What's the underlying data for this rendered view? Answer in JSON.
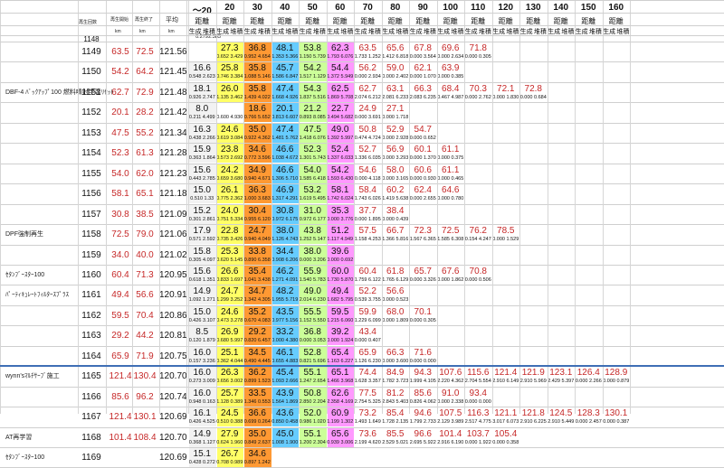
{
  "header": {
    "col_id": "再生回数",
    "col_start": "再生開始",
    "col_end": "再生終了",
    "col_avg": "平均",
    "unit_km": "km",
    "ranges": [
      "～20",
      "20",
      "30",
      "40",
      "50",
      "60",
      "70",
      "80",
      "90",
      "100",
      "110",
      "120",
      "130",
      "140",
      "150",
      "160"
    ],
    "sub_label": "距離",
    "sub2_a": "生成",
    "sub2_b": "堆積"
  },
  "top_partial": {
    "id": "1148",
    "big": "",
    "sm": [
      "0.279",
      "2.383"
    ]
  },
  "colors": {
    "c20": "#f2f2f2",
    "c30": "#ffff66",
    "c40": "#ff9933",
    "c50": "#66ccff",
    "c60": "#ccff99",
    "c70": "#ff99ff",
    "c80": "#ffffff"
  },
  "rows": [
    {
      "id": "1149",
      "start": "63.5",
      "end": "72.5",
      "avg": "121.56",
      "note": "",
      "bigs": [
        "",
        "27.3",
        "36.8",
        "48.1",
        "53.8",
        "62.3",
        "63.5",
        "65.6",
        "67.8",
        "69.6",
        "71.8"
      ],
      "sms": [
        "",
        "0.652 3.429",
        "0.952 4.654",
        "1.353 5.366",
        "1.150 5.739",
        "1.793 6.076",
        "1.733 1.252",
        "1.412 6.818",
        "0.000 3.564",
        "0.000 2.634",
        "0.000 0.305"
      ]
    },
    {
      "id": "1150",
      "start": "54.2",
      "end": "64.2",
      "avg": "121.45",
      "note": "",
      "bigs": [
        "16.6",
        "25.8",
        "35.8",
        "45.7",
        "54.2",
        "54.4",
        "56.2",
        "59.0",
        "62.1",
        "63.9"
      ],
      "sms": [
        "0.548 2.623",
        "0.746 3.384",
        "1.088 5.146",
        "1.586 6.847",
        "1.517 1.129",
        "1.372 5.949",
        "0.000 2.934",
        "0.000 2.402",
        "0.000 1.070",
        "0.000 0.385"
      ]
    },
    {
      "id": "1151",
      "start": "62.7",
      "end": "72.9",
      "avg": "121.48",
      "note": "DBF-4 ﾊﾞｯｸｱｯﾌﾟ100 燃料噴射学習ﾘｾｯﾄ",
      "bigs": [
        "18.1",
        "26.0",
        "35.8",
        "47.4",
        "54.3",
        "62.5",
        "62.7",
        "63.1",
        "66.3",
        "68.4",
        "70.3",
        "72.1",
        "72.8"
      ],
      "sms": [
        "0.926 2.747",
        "1.135 3.462",
        "1.439 4.022",
        "1.668 4.926",
        "1.837 5.516",
        "1.869 5.708",
        "2.074 6.212",
        "2.081 6.233",
        "2.083 6.235",
        "0.467 4.987",
        "0.000 2.762",
        "0.000 1.830",
        "0.000 0.684"
      ]
    },
    {
      "id": "1152",
      "start": "20.1",
      "end": "28.2",
      "avg": "121.42",
      "note": "",
      "bigs": [
        "8.0",
        "",
        "18.6",
        "20.1",
        "21.2",
        "22.7",
        "24.9",
        "27.1"
      ],
      "sms": [
        "0.211 4.499",
        "0.600 4.930",
        "0.766 5.652",
        "0.813 6.607",
        "0.893 8.085",
        "0.494 5.682",
        "0.000 3.691",
        "0.000 1.718"
      ]
    },
    {
      "id": "1153",
      "start": "47.5",
      "end": "55.2",
      "avg": "121.34",
      "note": "",
      "bigs": [
        "16.3",
        "24.6",
        "35.0",
        "47.4",
        "47.5",
        "49.0",
        "50.8",
        "52.9",
        "54.7"
      ],
      "sms": [
        "0.438 2.266",
        "0.619 3.084",
        "0.922 4.362",
        "1.481 5.762",
        "1.418 6.076",
        "1.392 5.997",
        "0.474 4.724",
        "0.000 2.928",
        "0.000 0.652"
      ]
    },
    {
      "id": "1154",
      "start": "52.3",
      "end": "61.3",
      "avg": "121.28",
      "note": "",
      "bigs": [
        "15.9",
        "23.8",
        "34.6",
        "46.6",
        "52.3",
        "52.4",
        "52.7",
        "56.9",
        "60.1",
        "61.1"
      ],
      "sms": [
        "0.363 1.864",
        "0.573 2.692",
        "0.772 3.596",
        "1.038 4.672",
        "1.301 5.743",
        "1.337 6.033",
        "1.336 6.035",
        "0.000 3.293",
        "0.000 1.370",
        "0.000 0.375"
      ]
    },
    {
      "id": "1155",
      "start": "54.0",
      "end": "62.0",
      "avg": "121.23",
      "note": "",
      "bigs": [
        "15.6",
        "24.2",
        "34.9",
        "46.6",
        "54.0",
        "54.2",
        "54.6",
        "58.0",
        "60.6",
        "61.1"
      ],
      "sms": [
        "0.443 2.785",
        "0.659 3.680",
        "0.940 4.671",
        "1.306 5.710",
        "1.585 6.418",
        "1.593 6.430",
        "0.000 4.118",
        "0.000 3.165",
        "0.000 0.930",
        "0.000 0.465"
      ]
    },
    {
      "id": "1156",
      "start": "58.1",
      "end": "65.1",
      "avg": "121.18",
      "note": "",
      "bigs": [
        "15.0",
        "26.1",
        "36.3",
        "46.9",
        "53.2",
        "58.1",
        "58.4",
        "60.2",
        "62.4",
        "64.6"
      ],
      "sms": [
        "0.510 1.33",
        "0.775 2.362",
        "1.000 3.683",
        "1.317 4.291",
        "1.619 5.495",
        "1.742 6.024",
        "1.743 6.026",
        "1.419 5.638",
        "0.000 2.655",
        "0.000 0.780"
      ]
    },
    {
      "id": "1157",
      "start": "30.8",
      "end": "38.5",
      "avg": "121.09",
      "note": "",
      "bigs": [
        "15.2",
        "24.0",
        "30.4",
        "30.8",
        "31.0",
        "35.3",
        "37.7",
        "38.4"
      ],
      "sms": [
        "0.301 2.861",
        "0.751 5.334",
        "0.955 6.120",
        "0.972 6.175",
        "0.972 6.177",
        "0.000 3.776",
        "0.000 1.895",
        "0.000 0.439"
      ]
    },
    {
      "id": "1158",
      "start": "72.5",
      "end": "79.0",
      "avg": "121.06",
      "note": "DPF強制再生",
      "bigs": [
        "17.9",
        "22.8",
        "24.7",
        "38.0",
        "43.8",
        "51.2",
        "57.5",
        "66.7",
        "72.3",
        "72.5",
        "76.2",
        "78.5"
      ],
      "sms": [
        "0.571 2.592",
        "0.735 3.426",
        "0.940 4.049",
        "1.126 4.743",
        "1.252 5.147",
        "1.117 4.949",
        "1.158 4.253",
        "1.366 5.816",
        "1.567 6.365",
        "1.585 6.308",
        "0.154 4.247",
        "0.000 1.529"
      ]
    },
    {
      "id": "1159",
      "start": "34.0",
      "end": "40.0",
      "avg": "121.02",
      "note": "",
      "bigs": [
        "15.8",
        "25.3",
        "33.8",
        "34.4",
        "38.0",
        "39.6"
      ],
      "sms": [
        "0.305 4.097",
        "0.620 5.145",
        "0.890 6.358",
        "0.908 6.206",
        "0.000 3.206",
        "0.000 0.692"
      ]
    },
    {
      "id": "1160",
      "start": "60.4",
      "end": "71.3",
      "avg": "120.95",
      "note": "ｾﾀﾝﾌﾞｰｽﾀｰ100",
      "bigs": [
        "15.6",
        "26.6",
        "35.4",
        "46.2",
        "55.9",
        "60.0",
        "60.4",
        "61.8",
        "65.7",
        "67.6",
        "70.8"
      ],
      "sms": [
        "0.618 1.351",
        "0.833 1.697",
        "1.041 3.438",
        "1.271 4.091",
        "1.540 5.783",
        "1.730 5.870",
        "1.759 6.122",
        "1.765 6.129",
        "0.000 3.326",
        "0.000 1.862",
        "0.000 0.506"
      ]
    },
    {
      "id": "1161",
      "start": "49.4",
      "end": "56.6",
      "avg": "120.91",
      "note": "ﾊﾟｰﾃｨｷｭﾚｰﾄﾌｨﾙﾀｰｽﾌﾟﾗｽ",
      "bigs": [
        "14.9",
        "24.7",
        "34.7",
        "48.2",
        "49.0",
        "49.4",
        "52.2",
        "56.6"
      ],
      "sms": [
        "1.092 1.271",
        "1.299 3.252",
        "1.342 4.305",
        "1.955 5.719",
        "2.014 6.230",
        "1.682 5.795",
        "0.539 3.755",
        "0.000 0.523"
      ]
    },
    {
      "id": "1162",
      "start": "59.5",
      "end": "70.4",
      "avg": "120.86",
      "note": "",
      "bigs": [
        "15.0",
        "24.6",
        "35.2",
        "43.5",
        "55.5",
        "59.5",
        "59.9",
        "68.0",
        "70.1"
      ],
      "sms": [
        "0.426 3.107",
        "0.473 3.278",
        "0.670 4.083",
        "0.977 5.156",
        "1.152 5.550",
        "1.215 6.060",
        "1.229 6.099",
        "0.000 1.809",
        "0.000 0.305"
      ]
    },
    {
      "id": "1163",
      "start": "29.2",
      "end": "44.2",
      "avg": "120.81",
      "note": "",
      "bigs": [
        "8.5",
        "26.9",
        "29.2",
        "33.2",
        "36.8",
        "39.2",
        "43.4"
      ],
      "sms": [
        "0.120 1.879",
        "0.680 5.997",
        "0.820 6.457",
        "0.000 4.380",
        "0.000 3.053",
        "0.000 1.924",
        "0.000 0.407"
      ]
    },
    {
      "id": "1164",
      "start": "65.9",
      "end": "71.9",
      "avg": "120.75",
      "note": "",
      "bigs": [
        "16.0",
        "25.1",
        "34.5",
        "46.1",
        "52.8",
        "65.4",
        "65.9",
        "66.3",
        "71.6"
      ],
      "sms": [
        "0.157 3.236",
        "0.362 4.044",
        "0.490 4.445",
        "0.655 4.883",
        "0.821 5.696",
        "1.163 6.227",
        "1.126 6.230",
        "0.000 3.600",
        "0.000 0.000"
      ]
    },
    {
      "id": "1165",
      "start": "121.4",
      "end": "130.4",
      "avg": "120.70",
      "note": "wynn'sﾏﾙﾁｻｰﾌﾞ施工",
      "bigs": [
        "16.0",
        "26.3",
        "36.2",
        "45.4",
        "55.1",
        "65.1",
        "74.4",
        "84.9",
        "94.3",
        "107.6",
        "115.6",
        "121.4",
        "121.9",
        "123.1",
        "126.4",
        "128.9"
      ],
      "sms": [
        "0.273 3.009",
        "0.656 3.002",
        "0.899 1.523",
        "1.093 2.666",
        "1.247 2.654",
        "1.466 3.968",
        "1.628 3.357",
        "1.782 3.723",
        "1.999 4.105",
        "2.220 4.362",
        "2.704 5.554",
        "2.910 6.149",
        "2.910 5.969",
        "2.429 5.397",
        "0.000 2.266",
        "0.000 0.879"
      ]
    },
    {
      "id": "1166",
      "start": "85.6",
      "end": "96.2",
      "avg": "120.74",
      "note": "",
      "bigs": [
        "16.0",
        "25.7",
        "33.5",
        "43.9",
        "50.8",
        "62.6",
        "77.5",
        "81.2",
        "85.6",
        "91.0",
        "93.4"
      ],
      "sms": [
        "0.948 0.163",
        "1.128 0.389",
        "1.346 0.553",
        "1.564 1.869",
        "2.850 2.204",
        "2.358 4.169",
        "2.754 5.325",
        "2.843 5.403",
        "0.826 4.062",
        "0.000 2.338",
        "0.000 0.000"
      ]
    },
    {
      "id": "1167",
      "start": "121.4",
      "end": "130.1",
      "avg": "120.69",
      "note": "",
      "bigs": [
        "16.1",
        "24.5",
        "36.6",
        "43.6",
        "52.0",
        "60.9",
        "73.2",
        "85.4",
        "94.6",
        "107.5",
        "116.3",
        "121.1",
        "121.8",
        "124.5",
        "128.3",
        "130.1"
      ],
      "sms": [
        "0.426 4.525",
        "0.510 0.388",
        "0.699 0.264",
        "0.850 0.458",
        "0.986 1.020",
        "1.199 1.302",
        "1.493 1.649",
        "1.728 2.135",
        "1.799 2.733",
        "2.129 3.989",
        "2.517 4.775",
        "3.017 6.073",
        "2.910 6.225",
        "2.910 5.449",
        "0.000 2.457",
        "0.000 0.387"
      ]
    },
    {
      "id": "1168",
      "start": "101.4",
      "end": "108.4",
      "avg": "120.70",
      "note": "AT再学習",
      "bigs": [
        "14.9",
        "27.9",
        "35.0",
        "45.0",
        "55.1",
        "65.6",
        "73.6",
        "85.5",
        "96.6",
        "101.4",
        "103.7",
        "105.4"
      ],
      "sms": [
        "0.368 1.127",
        "0.624 1.960",
        "0.849 2.637",
        "1.008 1.900",
        "1.200 2.304",
        "0.939 3.006",
        "2.199 4.620",
        "2.529 5.021",
        "2.695 5.922",
        "2.916 6.190",
        "0.000 1.922",
        "0.000 0.358"
      ]
    },
    {
      "id": "1169",
      "start": "",
      "end": "",
      "avg": "120.69",
      "note": "ｾﾀﾝﾌﾞｰｽﾀｰ100",
      "bigs": [
        "15.1",
        "26.7",
        "34.6"
      ],
      "sms": [
        "0.428 0.272",
        "0.708 0.989",
        "0.897 1.242"
      ]
    }
  ]
}
